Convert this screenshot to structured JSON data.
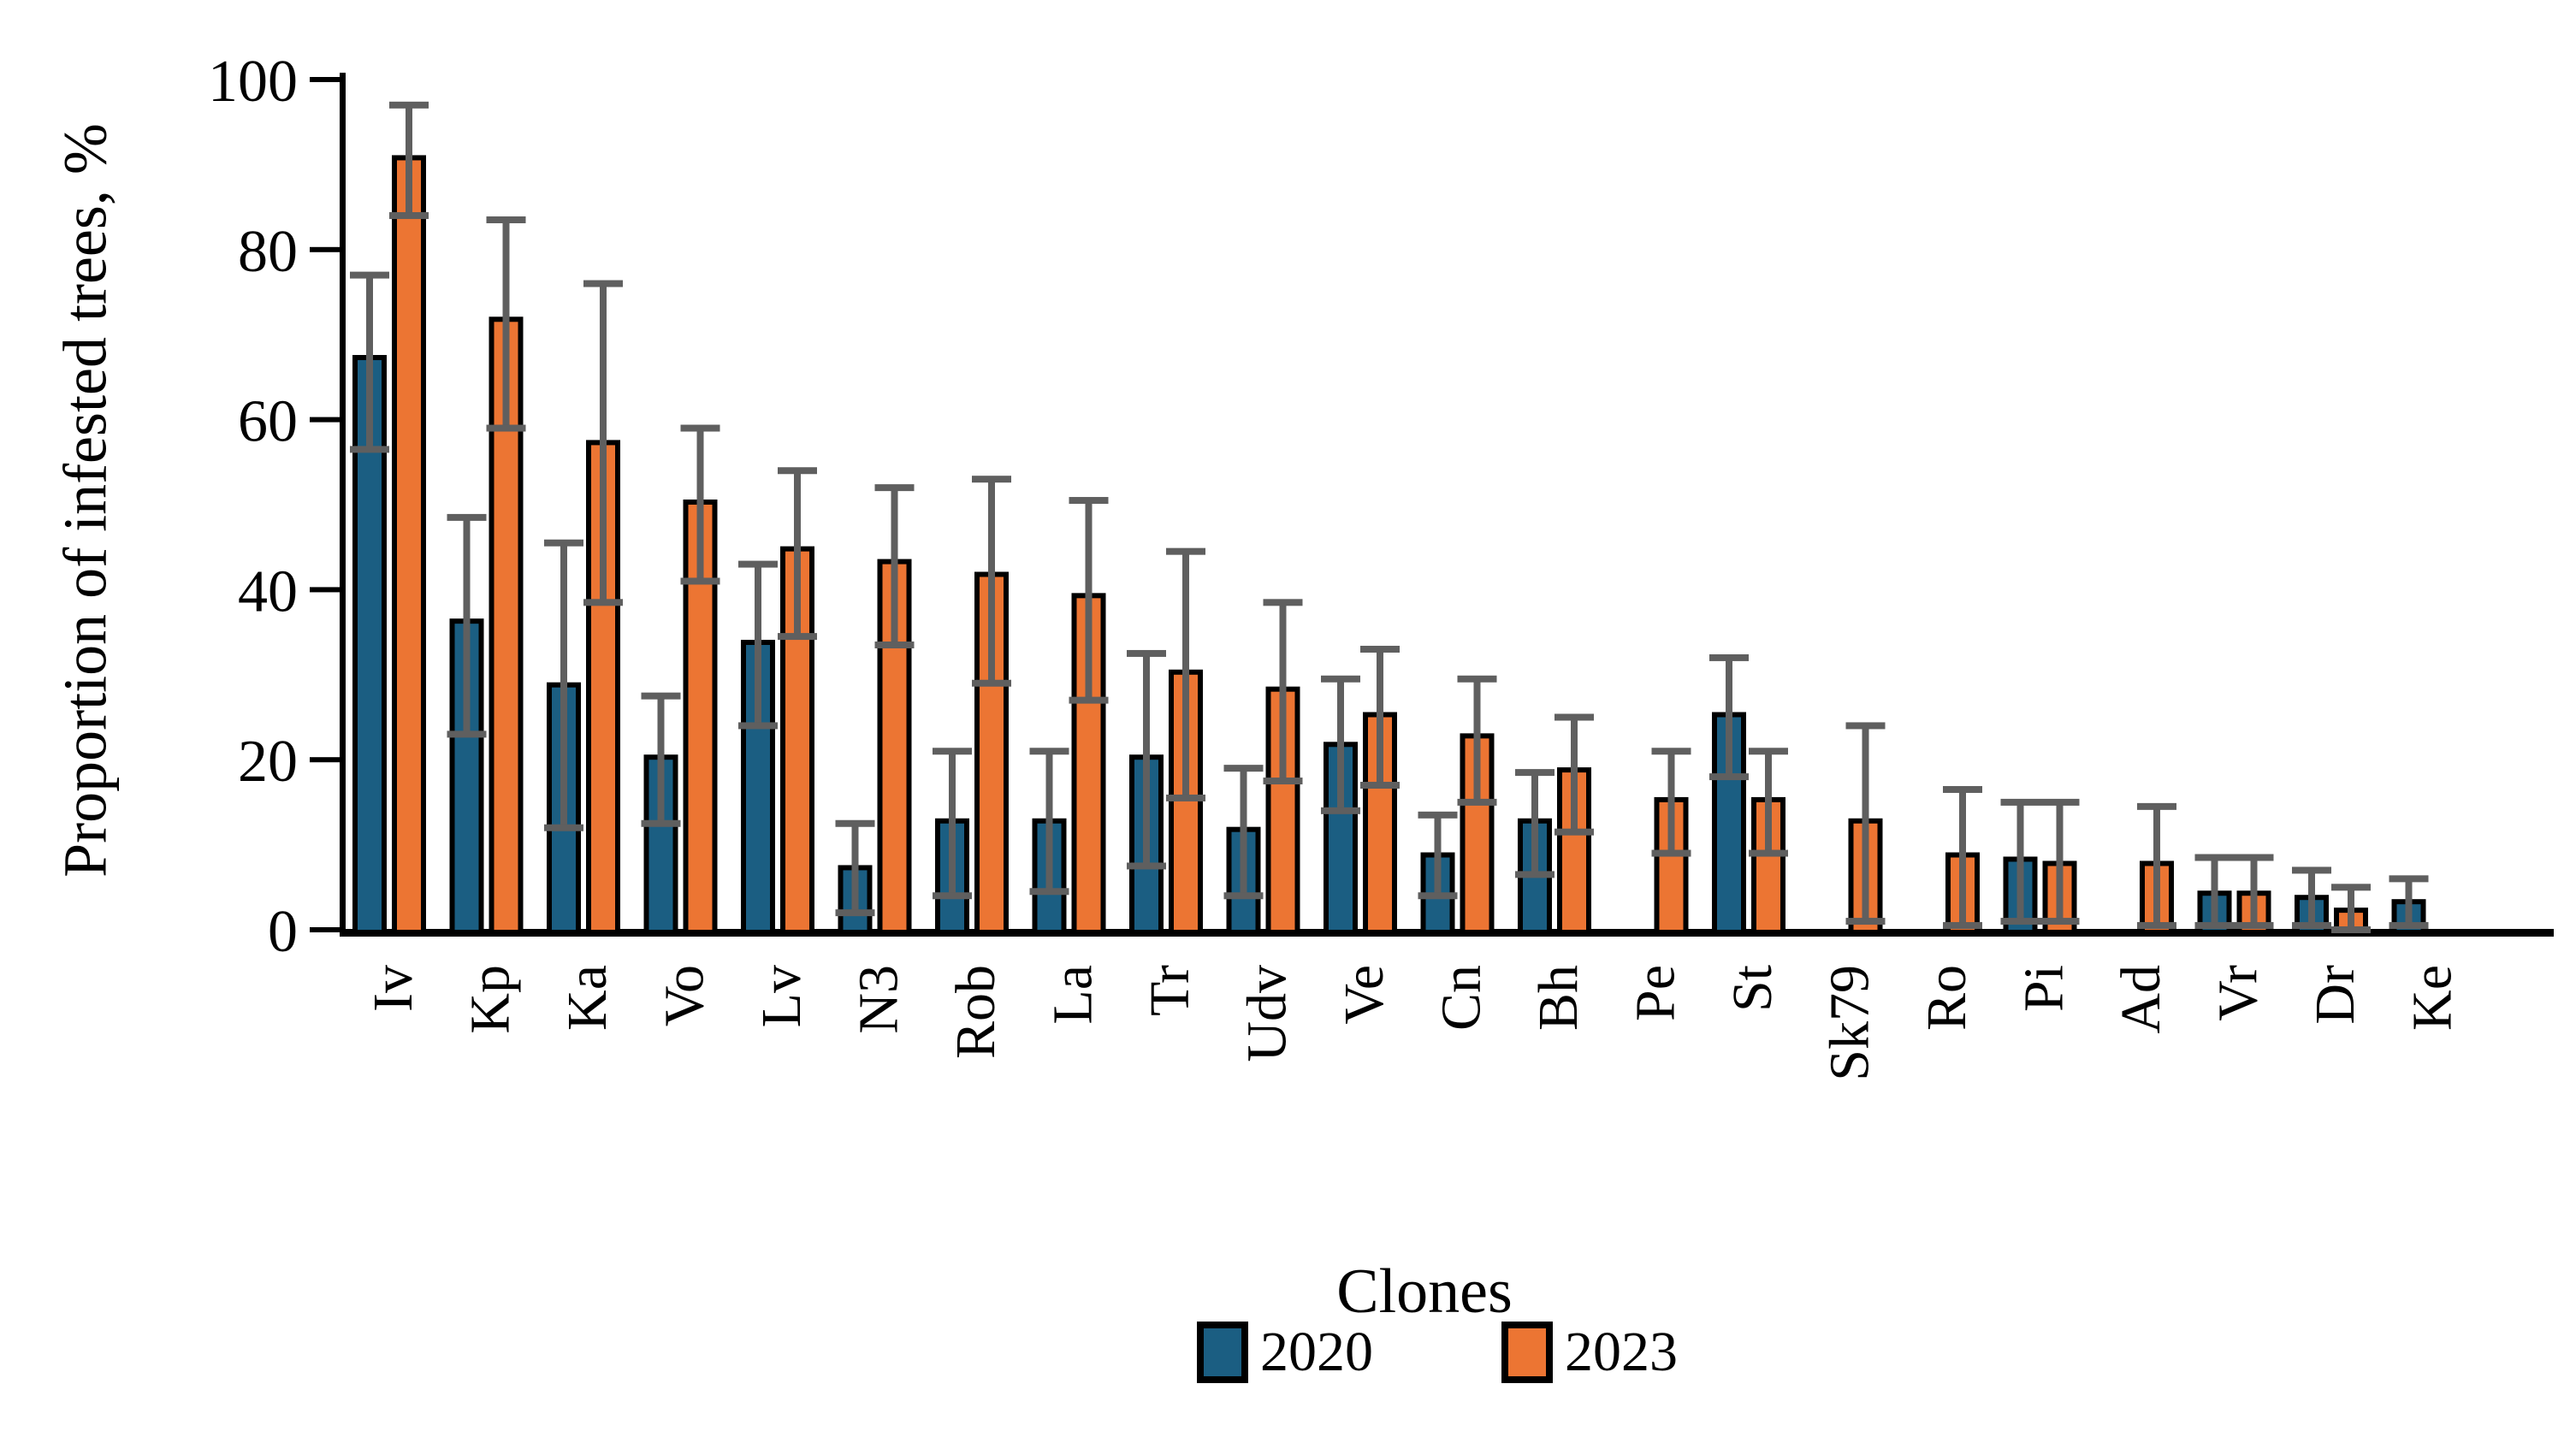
{
  "y_axis_title": "Proportion of infested trees, %",
  "x_axis_title": "Clones",
  "legend": {
    "items": [
      {
        "label": "2020",
        "color": "#1B5E82"
      },
      {
        "label": "2023",
        "color": "#EC7533"
      }
    ]
  },
  "colors": {
    "series_2020": "#1B5E82",
    "series_2023": "#EC7533",
    "error_bar": "#5F5F5F",
    "bar_outline": "#000000",
    "axis": "#000000"
  },
  "chart_data": {
    "type": "bar",
    "title": "",
    "xlabel": "Clones",
    "ylabel": "Proportion of infested trees, %",
    "ylim": [
      0,
      100
    ],
    "yticks": [
      0,
      20,
      40,
      60,
      80,
      100
    ],
    "grid": false,
    "legend_position": "bottom",
    "error_bars": true,
    "categories": [
      "Iv",
      "Kp",
      "Ka",
      "Vo",
      "Lv",
      "N3",
      "Rob",
      "La",
      "Tr",
      "Udv",
      "Ve",
      "Cn",
      "Bh",
      "Pe",
      "St",
      "Sk79",
      "Ro",
      "Pi",
      "Ad",
      "Vr",
      "Dr",
      "Ke"
    ],
    "series": [
      {
        "name": "2020",
        "color": "#1B5E82",
        "values": [
          67,
          36,
          28.5,
          20,
          33.5,
          7,
          12.5,
          12.5,
          20,
          11.5,
          21.5,
          8.5,
          12.5,
          null,
          25,
          null,
          null,
          8,
          null,
          4,
          3.5,
          3
        ],
        "err_low": [
          56.5,
          23,
          12,
          12.5,
          24,
          2,
          4,
          4.5,
          7.5,
          4,
          14,
          4,
          6.5,
          null,
          18,
          null,
          null,
          1,
          null,
          0.5,
          0.5,
          0.5
        ],
        "err_high": [
          77,
          48.5,
          45.5,
          27.5,
          43,
          12.5,
          21,
          21,
          32.5,
          19,
          29.5,
          13.5,
          18.5,
          null,
          32,
          null,
          null,
          15,
          null,
          8.5,
          7,
          6
        ]
      },
      {
        "name": "2023",
        "color": "#EC7533",
        "values": [
          90.5,
          71.5,
          57,
          50,
          44.5,
          43,
          41.5,
          39,
          30,
          28,
          25,
          22.5,
          18.5,
          15,
          15,
          12.5,
          8.5,
          7.5,
          7.5,
          4,
          2,
          null
        ],
        "err_low": [
          84,
          59,
          38.5,
          41,
          34.5,
          33.5,
          29,
          27,
          15.5,
          17.5,
          17,
          15,
          11.5,
          9,
          9,
          1,
          0.5,
          1,
          0.5,
          0.5,
          0,
          null
        ],
        "err_high": [
          97,
          83.5,
          76,
          59,
          54,
          52,
          53,
          50.5,
          44.5,
          38.5,
          33,
          29.5,
          25,
          21,
          21,
          24,
          16.5,
          15,
          14.5,
          8.5,
          5,
          null
        ]
      }
    ]
  }
}
